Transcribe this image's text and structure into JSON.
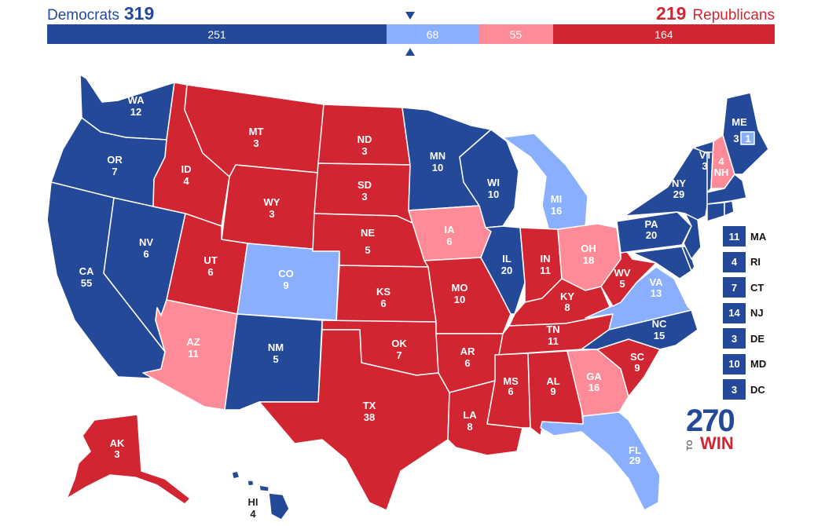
{
  "header": {
    "dem_label": "Democrats",
    "dem_total": "319",
    "rep_label": "Republicans",
    "rep_total": "219"
  },
  "bar": {
    "segments": [
      {
        "value": "251",
        "votes": 251,
        "color": "#244999"
      },
      {
        "value": "68",
        "votes": 68,
        "color": "#8aafff"
      },
      {
        "value": "55",
        "votes": 55,
        "color": "#ff8b98"
      },
      {
        "value": "164",
        "votes": 164,
        "color": "#d22532"
      }
    ],
    "total_votes": 538
  },
  "colors": {
    "safe_dem": "#244999",
    "lean_dem": "#8aafff",
    "lean_rep": "#ff8b98",
    "safe_rep": "#d22532"
  },
  "states": {
    "WA": {
      "abbr": "WA",
      "ev": "12"
    },
    "OR": {
      "abbr": "OR",
      "ev": "7"
    },
    "CA": {
      "abbr": "CA",
      "ev": "55"
    },
    "NV": {
      "abbr": "NV",
      "ev": "6"
    },
    "ID": {
      "abbr": "ID",
      "ev": "4"
    },
    "MT": {
      "abbr": "MT",
      "ev": "3"
    },
    "WY": {
      "abbr": "WY",
      "ev": "3"
    },
    "UT": {
      "abbr": "UT",
      "ev": "6"
    },
    "AZ": {
      "abbr": "AZ",
      "ev": "11"
    },
    "CO": {
      "abbr": "CO",
      "ev": "9"
    },
    "NM": {
      "abbr": "NM",
      "ev": "5"
    },
    "ND": {
      "abbr": "ND",
      "ev": "3"
    },
    "SD": {
      "abbr": "SD",
      "ev": "3"
    },
    "NE": {
      "abbr": "NE",
      "ev": "5"
    },
    "KS": {
      "abbr": "KS",
      "ev": "6"
    },
    "OK": {
      "abbr": "OK",
      "ev": "7"
    },
    "TX": {
      "abbr": "TX",
      "ev": "38"
    },
    "MN": {
      "abbr": "MN",
      "ev": "10"
    },
    "IA": {
      "abbr": "IA",
      "ev": "6"
    },
    "MO": {
      "abbr": "MO",
      "ev": "10"
    },
    "AR": {
      "abbr": "AR",
      "ev": "6"
    },
    "LA": {
      "abbr": "LA",
      "ev": "8"
    },
    "WI": {
      "abbr": "WI",
      "ev": "10"
    },
    "IL": {
      "abbr": "IL",
      "ev": "20"
    },
    "MI": {
      "abbr": "MI",
      "ev": "16"
    },
    "IN": {
      "abbr": "IN",
      "ev": "11"
    },
    "OH": {
      "abbr": "OH",
      "ev": "18"
    },
    "KY": {
      "abbr": "KY",
      "ev": "8"
    },
    "TN": {
      "abbr": "TN",
      "ev": "11"
    },
    "MS": {
      "abbr": "MS",
      "ev": "6"
    },
    "AL": {
      "abbr": "AL",
      "ev": "9"
    },
    "GA": {
      "abbr": "GA",
      "ev": "16"
    },
    "FL": {
      "abbr": "FL",
      "ev": "29"
    },
    "SC": {
      "abbr": "SC",
      "ev": "9"
    },
    "NC": {
      "abbr": "NC",
      "ev": "15"
    },
    "VA": {
      "abbr": "VA",
      "ev": "13"
    },
    "WV": {
      "abbr": "WV",
      "ev": "5"
    },
    "PA": {
      "abbr": "PA",
      "ev": "20"
    },
    "NY": {
      "abbr": "NY",
      "ev": "29"
    },
    "VT": {
      "abbr": "VT",
      "ev": "3"
    },
    "NH": {
      "abbr": "NH",
      "ev": "4"
    },
    "ME": {
      "abbr": "ME",
      "ev": "3",
      "district_ev": "1"
    },
    "AK": {
      "abbr": "AK",
      "ev": "3"
    },
    "HI": {
      "abbr": "HI",
      "ev": "4"
    }
  },
  "small_states": [
    {
      "abbr": "MA",
      "ev": "11"
    },
    {
      "abbr": "RI",
      "ev": "4"
    },
    {
      "abbr": "CT",
      "ev": "7"
    },
    {
      "abbr": "NJ",
      "ev": "14"
    },
    {
      "abbr": "DE",
      "ev": "3"
    },
    {
      "abbr": "MD",
      "ev": "10"
    },
    {
      "abbr": "DC",
      "ev": "3"
    }
  ],
  "logo": {
    "number": "270",
    "to": "TO",
    "win": "WIN"
  }
}
